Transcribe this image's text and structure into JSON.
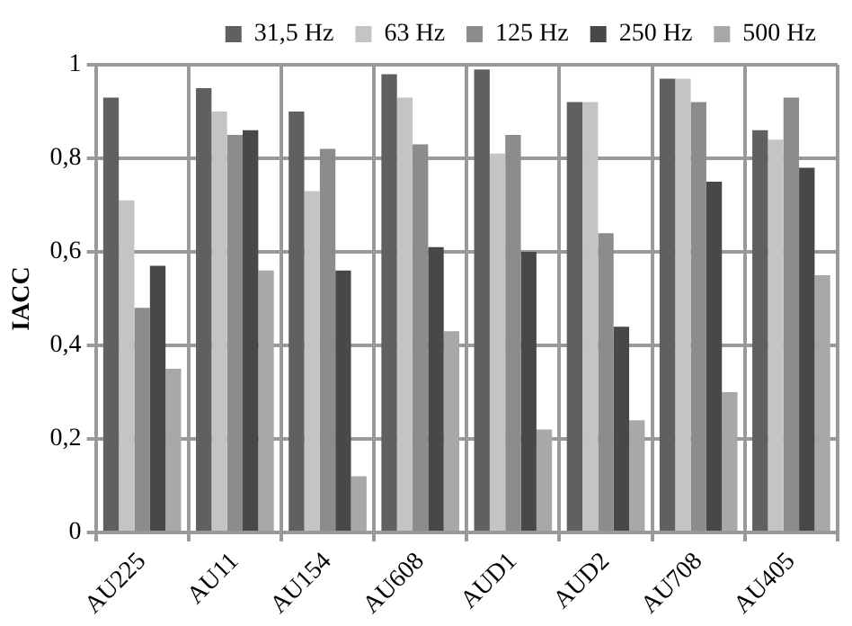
{
  "chart_data": {
    "type": "bar",
    "ylabel": "IACC",
    "categories": [
      "AU225",
      "AU11",
      "AU154",
      "AU608",
      "AUD1",
      "AUD2",
      "AU708",
      "AU405"
    ],
    "series": [
      {
        "name": "31,5 Hz",
        "color": "#606060",
        "values": [
          0.93,
          0.95,
          0.9,
          0.98,
          0.99,
          0.92,
          0.97,
          0.86
        ]
      },
      {
        "name": "63 Hz",
        "color": "#c4c4c4",
        "values": [
          0.71,
          0.9,
          0.73,
          0.93,
          0.81,
          0.92,
          0.97,
          0.84
        ]
      },
      {
        "name": "125 Hz",
        "color": "#8c8c8c",
        "values": [
          0.48,
          0.85,
          0.82,
          0.83,
          0.85,
          0.64,
          0.92,
          0.93
        ]
      },
      {
        "name": "250 Hz",
        "color": "#484848",
        "values": [
          0.57,
          0.86,
          0.56,
          0.61,
          0.6,
          0.44,
          0.75,
          0.78
        ]
      },
      {
        "name": "500 Hz",
        "color": "#a8a8a8",
        "values": [
          0.35,
          0.56,
          0.12,
          0.43,
          0.22,
          0.24,
          0.3,
          0.55
        ]
      }
    ],
    "ylim": [
      0,
      1
    ],
    "yticks": [
      0,
      {
        "value": 0.2,
        "label": "0,2"
      },
      {
        "value": 0.4,
        "label": "0,4"
      },
      {
        "value": 0.6,
        "label": "0,6"
      },
      {
        "value": 0.8,
        "label": "0,8"
      },
      1
    ],
    "grid": true,
    "legend": "top right"
  }
}
